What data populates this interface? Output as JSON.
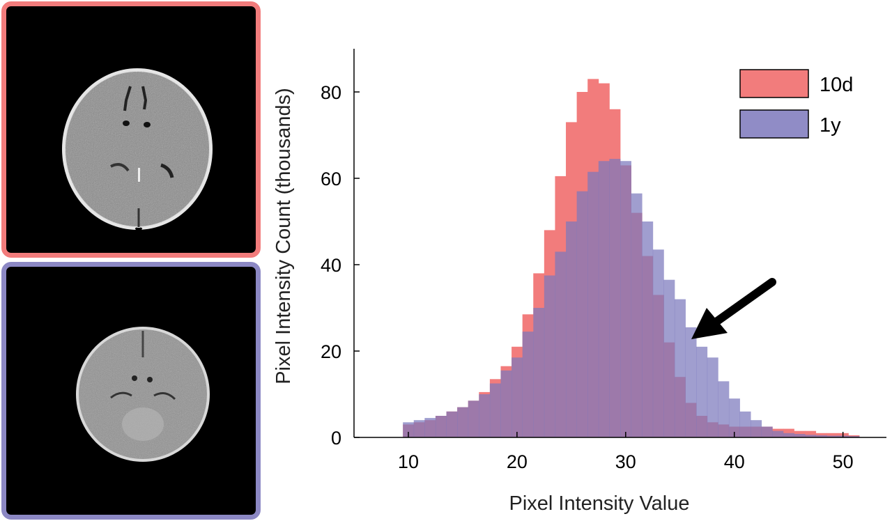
{
  "images": {
    "top_scan": {
      "label": "",
      "border_color": "#f27c7c"
    },
    "bottom_scan": {
      "label": "",
      "border_color": "#8c88c4"
    }
  },
  "chart_data": {
    "type": "bar",
    "xlabel": "Pixel Intensity Value",
    "ylabel": "Pixel Intensity Count (thousands)",
    "xlim": [
      5,
      54
    ],
    "ylim": [
      0,
      90
    ],
    "x_ticks": [
      10,
      20,
      30,
      40,
      50
    ],
    "y_ticks": [
      0,
      20,
      40,
      60,
      80
    ],
    "bin_width": 1,
    "legend_position": "top-right",
    "x": [
      10,
      11,
      12,
      13,
      14,
      15,
      16,
      17,
      18,
      19,
      20,
      21,
      22,
      23,
      24,
      25,
      26,
      27,
      28,
      29,
      30,
      31,
      32,
      33,
      34,
      35,
      36,
      37,
      38,
      39,
      40,
      41,
      42,
      43,
      44,
      45,
      46,
      47,
      48,
      49,
      50,
      51
    ],
    "series": [
      {
        "name": "10d",
        "color": "#f27c7c",
        "values": [
          3.0,
          3.5,
          4.0,
          5.0,
          6.0,
          7.0,
          8.5,
          10.5,
          13.5,
          16.5,
          21,
          28.5,
          38,
          48,
          60.5,
          73,
          80,
          83,
          82,
          76,
          63,
          52,
          42,
          33,
          22,
          14,
          8,
          5,
          3.5,
          3.0,
          2.5,
          2.5,
          2.5,
          2.5,
          2.0,
          2.0,
          1.5,
          1.5,
          1.0,
          1.0,
          1.0,
          0.5
        ]
      },
      {
        "name": "1y",
        "color": "#7c78bc",
        "values": [
          3.5,
          4.0,
          4.5,
          5.0,
          6.0,
          7.0,
          8.5,
          10.0,
          12.5,
          15.5,
          18.5,
          24.5,
          30,
          37.5,
          43,
          50,
          57,
          61.5,
          64,
          64.5,
          64,
          56.5,
          50,
          43.5,
          36.5,
          32,
          25.5,
          21,
          18.5,
          13,
          9,
          6,
          4,
          2.5,
          1.5,
          1.0,
          0.8,
          0.6,
          0.5,
          0.4,
          0.4,
          0.3
        ]
      }
    ]
  }
}
